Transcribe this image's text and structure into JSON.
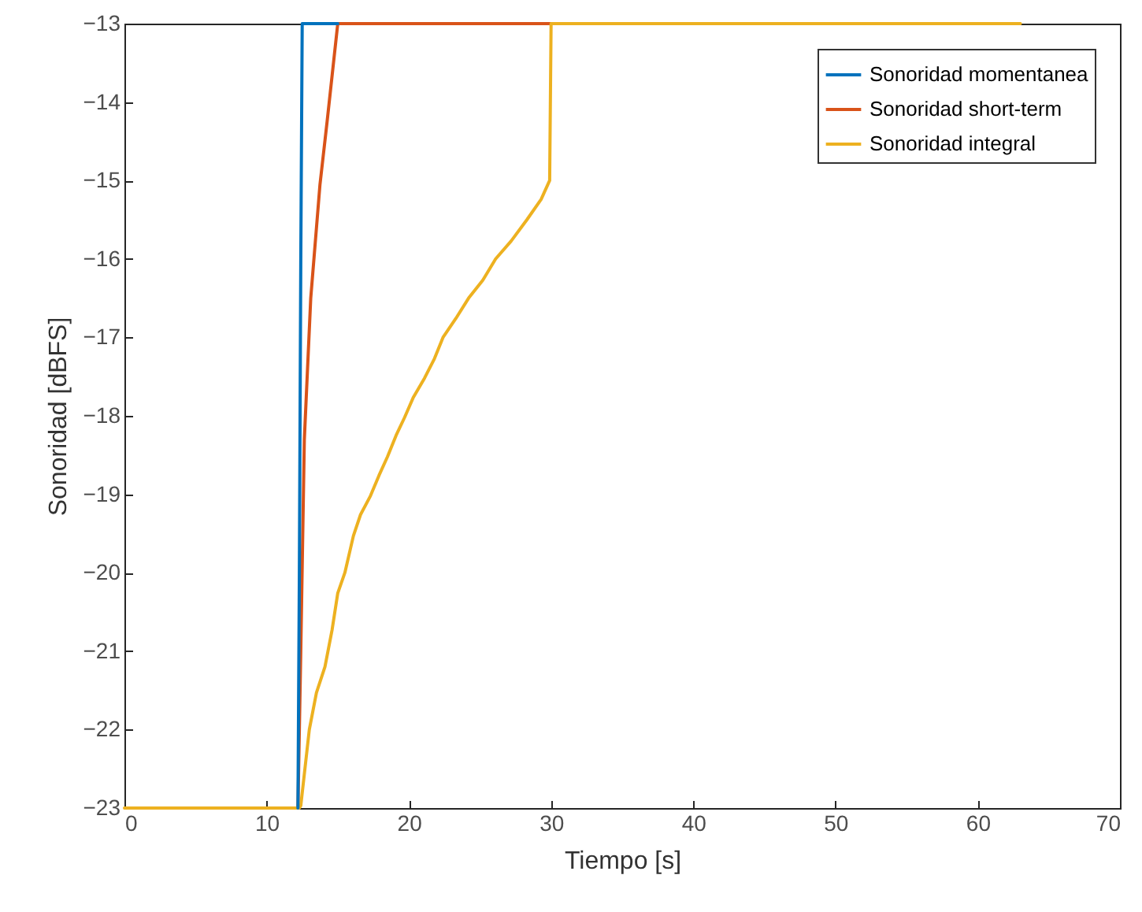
{
  "chart_data": {
    "type": "line",
    "xlabel": "Tiempo [s]",
    "ylabel": "Sonoridad [dBFS]",
    "xlim": [
      0,
      70
    ],
    "xticks": [
      0,
      10,
      20,
      30,
      40,
      50,
      60,
      70
    ],
    "ylim": [
      -23,
      -13
    ],
    "yticks": [
      -23,
      -22,
      -21,
      -20,
      -19,
      -18,
      -17,
      -16,
      -15,
      -14,
      -13
    ],
    "grid": false,
    "legend": "top right",
    "line_style": "solid",
    "marker": "none",
    "series": [
      {
        "name": "Sonoridad momentanea",
        "color": "#0072bd",
        "x": [
          12.2,
          12.3,
          12.4,
          12.5,
          15
        ],
        "values": [
          -23,
          -20,
          -16,
          -13,
          -13
        ]
      },
      {
        "name": "Sonoridad short-term",
        "color": "#d95319",
        "x": [
          12.2,
          12.4,
          12.65,
          13.1,
          13.75,
          14.25,
          14.7,
          15,
          30
        ],
        "values": [
          -23,
          -21,
          -18.3,
          -16.5,
          -15.05,
          -14.25,
          -13.5,
          -13,
          -13
        ]
      },
      {
        "name": "Sonoridad integral",
        "color": "#edb120",
        "x": [
          0,
          12.3,
          12.4,
          13,
          13.5,
          14.1,
          14.6,
          15,
          15.5,
          16.1,
          16.6,
          17.3,
          17.9,
          18.5,
          19.1,
          19.7,
          20.3,
          21.1,
          21.8,
          22.4,
          23.3,
          24.2,
          25.2,
          26.1,
          27.2,
          28.3,
          29.3,
          29.9,
          30,
          63
        ],
        "values": [
          -23,
          -23,
          -22.97,
          -22,
          -21.53,
          -21.2,
          -20.73,
          -20.26,
          -20,
          -19.53,
          -19.26,
          -19.02,
          -18.76,
          -18.52,
          -18.25,
          -18.02,
          -17.77,
          -17.52,
          -17.27,
          -17,
          -16.76,
          -16.5,
          -16.27,
          -16,
          -15.77,
          -15.5,
          -15.24,
          -15,
          -13,
          -13
        ]
      }
    ]
  }
}
